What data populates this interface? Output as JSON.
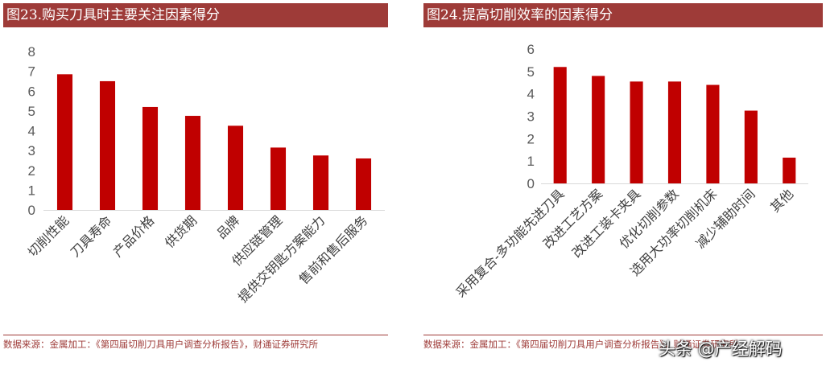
{
  "charts": [
    {
      "title": "图23.购买刀具时主要关注因素得分",
      "source": "数据来源：金属加工：《第四届切削刀具用户调查分析报告》，财通证券研究所"
    },
    {
      "title": "图24.提高切削效率的因素得分",
      "source": "数据来源：金属加工：《第四届切削刀具用户调查分析报告》，财通证券研究所"
    }
  ],
  "watermark": "头条 @产经解码",
  "colors": {
    "bar": "#c00000",
    "title_bg": "#9e3b38",
    "source_text": "#9e3b38"
  },
  "chart_data": [
    {
      "type": "bar",
      "title": "图23.购买刀具时主要关注因素得分",
      "categories": [
        "切削性能",
        "刀具寿命",
        "产品价格",
        "供货期",
        "品牌",
        "供应链管理",
        "提供交钥匙方案能力",
        "售前和售后服务"
      ],
      "values": [
        6.85,
        6.5,
        5.2,
        4.75,
        4.25,
        3.15,
        2.75,
        2.6
      ],
      "ylim": [
        0,
        8
      ],
      "yticks": [
        0,
        1,
        2,
        3,
        4,
        5,
        6,
        7,
        8
      ],
      "xlabel": "",
      "ylabel": "",
      "grid": false,
      "legend": false
    },
    {
      "type": "bar",
      "title": "图24.提高切削效率的因素得分",
      "categories": [
        "采用复合-多功能先进刀具",
        "改进工艺方案",
        "改进工装卡夹具",
        "优化切削参数",
        "选用大功率切削机床",
        "减少辅助时间",
        "其他"
      ],
      "values": [
        5.2,
        4.8,
        4.55,
        4.55,
        4.4,
        3.25,
        1.15
      ],
      "ylim": [
        0,
        6
      ],
      "yticks": [
        0,
        1,
        2,
        3,
        4,
        5,
        6
      ],
      "xlabel": "",
      "ylabel": "",
      "grid": false,
      "legend": false
    }
  ]
}
